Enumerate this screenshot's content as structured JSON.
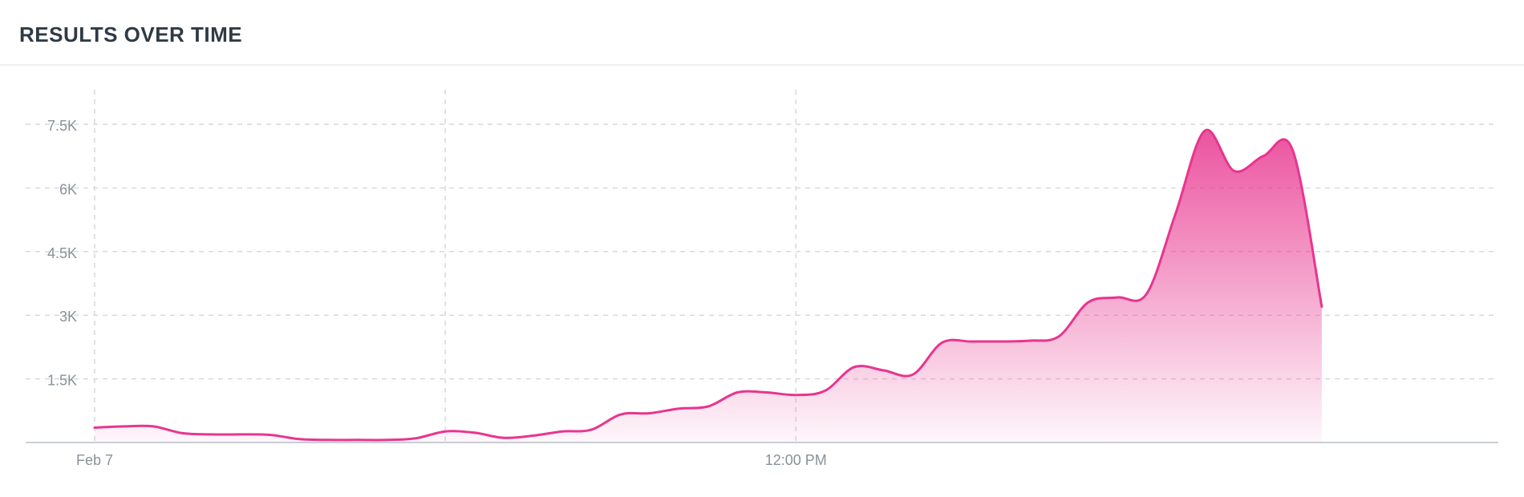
{
  "panel": {
    "title": "RESULTS OVER TIME"
  },
  "colors": {
    "line": "#e8358f",
    "fill_top": "#e8358f",
    "grid": "#d6d9dc",
    "axis": "#c9ced3",
    "tick_text": "#8a9199"
  },
  "chart_data": {
    "type": "area",
    "title": "RESULTS OVER TIME",
    "xlabel": "",
    "ylabel": "",
    "x_tick_labels": [
      {
        "label": "Feb 7",
        "hour": 0
      },
      {
        "label": "12:00 PM",
        "hour": 12
      }
    ],
    "x_vertical_gridlines_hours": [
      0,
      6,
      12
    ],
    "xlim_hours": [
      0,
      23.5
    ],
    "y_ticks": [
      {
        "label": "1.5K",
        "value": 1500
      },
      {
        "label": "3K",
        "value": 3000
      },
      {
        "label": "4.5K",
        "value": 4500
      },
      {
        "label": "6K",
        "value": 6000
      },
      {
        "label": "7.5K",
        "value": 7500
      }
    ],
    "ylim": [
      0,
      8200
    ],
    "grid": true,
    "series": [
      {
        "x_hours": [
          0,
          0.5,
          1,
          1.5,
          2,
          2.5,
          3,
          3.5,
          4,
          4.5,
          5,
          5.5,
          6,
          6.5,
          7,
          7.5,
          8,
          8.5,
          9,
          9.5,
          10,
          10.5,
          11,
          11.5,
          12,
          12.5,
          13,
          13.5,
          14,
          14.5,
          15,
          15.5,
          16,
          16.5,
          17,
          17.5,
          18,
          18.5,
          19,
          19.5,
          20,
          20.5,
          21,
          21.5,
          22,
          22.5,
          23
        ],
        "values": [
          350,
          380,
          380,
          220,
          190,
          190,
          180,
          80,
          60,
          60,
          60,
          100,
          260,
          230,
          110,
          160,
          260,
          300,
          660,
          690,
          800,
          850,
          1180,
          1180,
          1120,
          1220,
          1780,
          1700,
          1600,
          2350,
          2380,
          2380,
          2400,
          2500,
          3300,
          3420,
          3500,
          5400,
          7350,
          6400,
          6750,
          6900,
          3200,
          null,
          null,
          null,
          null
        ]
      }
    ]
  }
}
